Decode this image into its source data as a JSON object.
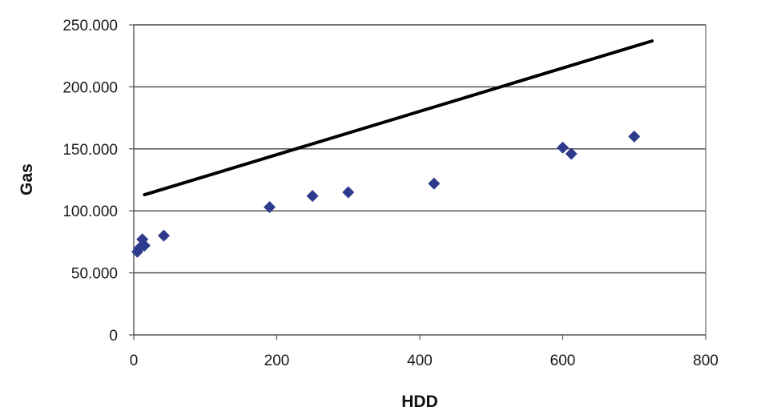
{
  "chart_data": {
    "type": "scatter",
    "title": "",
    "xlabel": "HDD",
    "ylabel": "Gas",
    "xlim": [
      0,
      800
    ],
    "ylim": [
      0,
      250000
    ],
    "x_ticks": [
      0,
      200,
      400,
      600,
      800
    ],
    "x_tick_labels": [
      "0",
      "200",
      "400",
      "600",
      "800"
    ],
    "y_ticks": [
      0,
      50000,
      100000,
      150000,
      200000,
      250000
    ],
    "y_tick_labels": [
      "0",
      "50.000",
      "100.000",
      "150.000",
      "200.000",
      "250.000"
    ],
    "grid": "horizontal",
    "legend": "none",
    "series": [
      {
        "kind": "points",
        "marker": "diamond",
        "color": "#2e3a8c",
        "points": [
          [
            5,
            67000
          ],
          [
            8,
            70000
          ],
          [
            12,
            77000
          ],
          [
            15,
            72000
          ],
          [
            42,
            80000
          ],
          [
            190,
            103000
          ],
          [
            250,
            112000
          ],
          [
            300,
            115000
          ],
          [
            420,
            122000
          ],
          [
            600,
            151000
          ],
          [
            612,
            146000
          ],
          [
            700,
            160000
          ]
        ]
      },
      {
        "kind": "line",
        "color": "#000000",
        "points": [
          [
            15,
            113000
          ],
          [
            725,
            237000
          ]
        ]
      }
    ]
  }
}
